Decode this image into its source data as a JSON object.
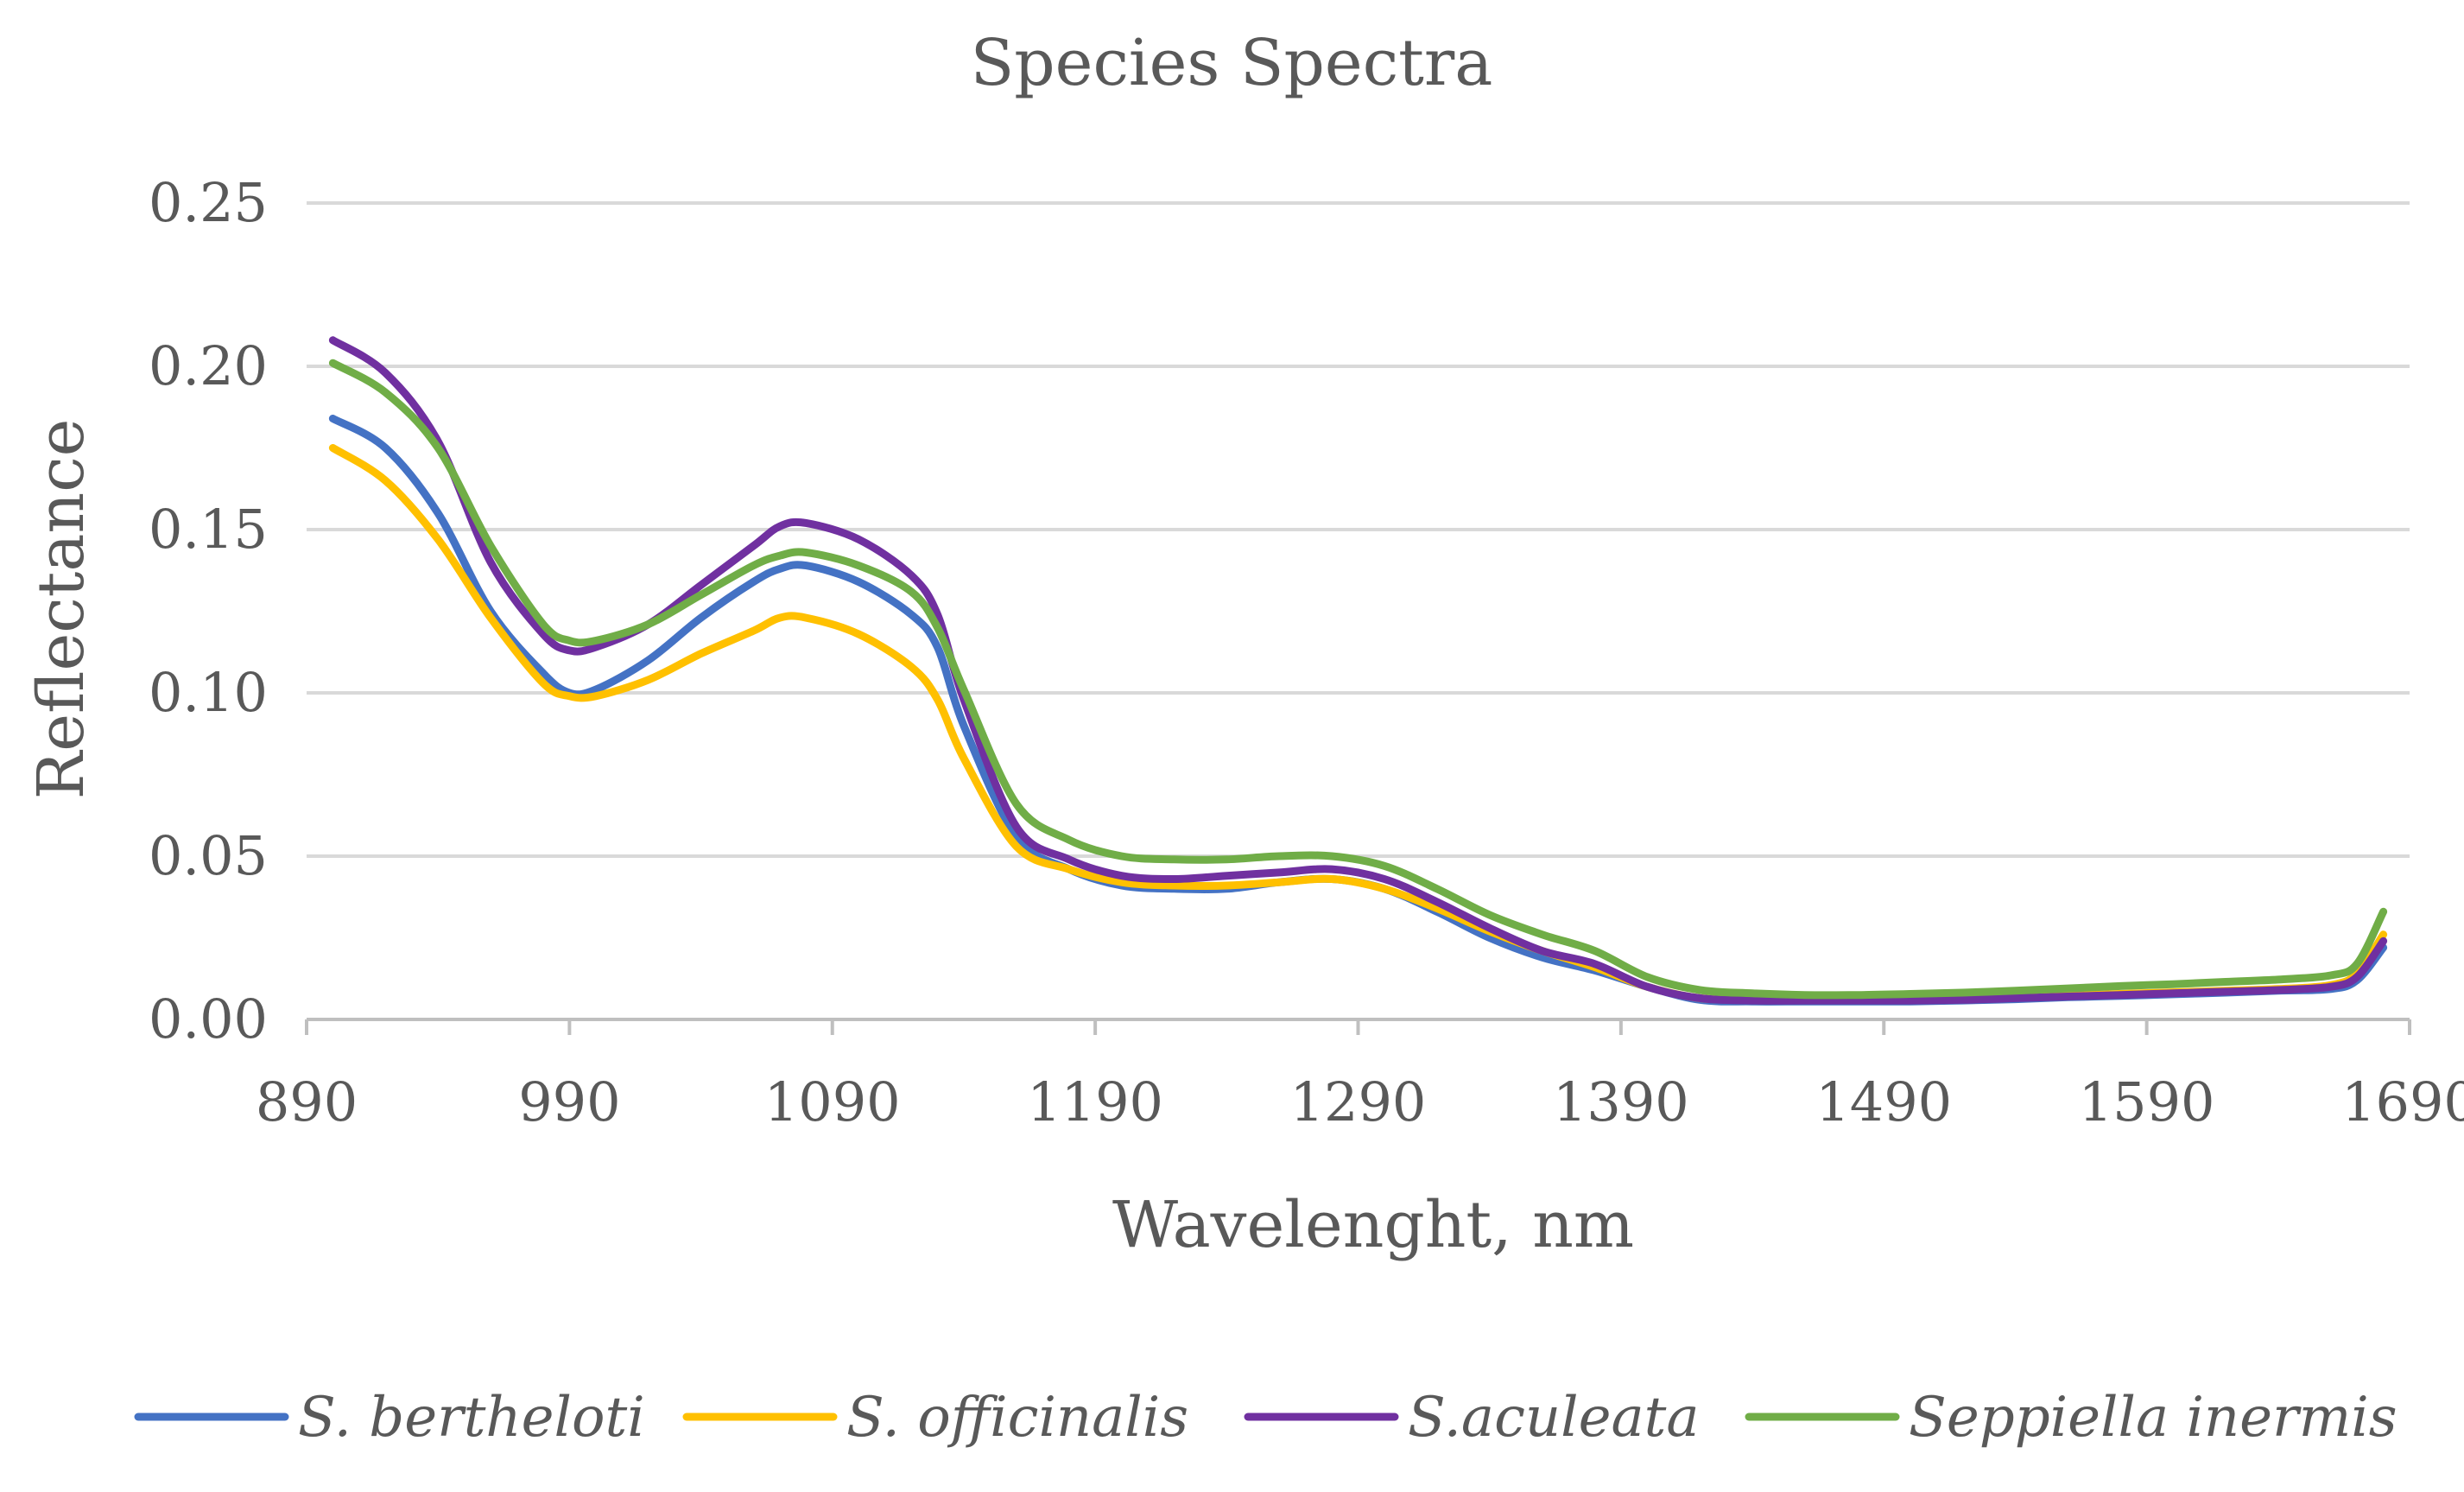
{
  "chart_data": {
    "type": "line",
    "title": "Species Spectra",
    "xlabel": "Wavelenght, nm",
    "ylabel": "Reflectance",
    "xlim": [
      890,
      1690
    ],
    "ylim": [
      0,
      0.25
    ],
    "x_ticks": [
      890,
      990,
      1090,
      1190,
      1290,
      1390,
      1490,
      1590,
      1690
    ],
    "x_tick_labels": [
      "890",
      "990",
      "1090",
      "1190",
      "1290",
      "1390",
      "1490",
      "1590",
      "1690"
    ],
    "y_ticks": [
      0,
      0.05,
      0.1,
      0.15,
      0.2,
      0.25
    ],
    "y_tick_labels": [
      "0.00",
      "0.05",
      "0.10",
      "0.15",
      "0.20",
      "0.25"
    ],
    "grid": "horizontal",
    "legend_position": "bottom",
    "x": [
      900,
      920,
      940,
      960,
      980,
      990,
      1000,
      1020,
      1040,
      1060,
      1070,
      1080,
      1100,
      1120,
      1130,
      1140,
      1160,
      1180,
      1200,
      1220,
      1240,
      1260,
      1280,
      1300,
      1320,
      1340,
      1360,
      1380,
      1400,
      1420,
      1440,
      1460,
      1480,
      1500,
      1520,
      1540,
      1560,
      1580,
      1600,
      1620,
      1640,
      1660,
      1670,
      1680
    ],
    "series": [
      {
        "name": "S. bertheloti",
        "color": "#4472C4",
        "values": [
          0.184,
          0.175,
          0.155,
          0.125,
          0.106,
          0.1,
          0.101,
          0.11,
          0.123,
          0.134,
          0.138,
          0.139,
          0.134,
          0.124,
          0.114,
          0.09,
          0.056,
          0.046,
          0.041,
          0.04,
          0.04,
          0.042,
          0.043,
          0.04,
          0.033,
          0.025,
          0.019,
          0.015,
          0.01,
          0.006,
          0.0055,
          0.0055,
          0.0055,
          0.0055,
          0.0058,
          0.0062,
          0.0068,
          0.0072,
          0.0077,
          0.0082,
          0.0088,
          0.0093,
          0.012,
          0.022
        ]
      },
      {
        "name": "S. officinalis",
        "color": "#FFC000",
        "values": [
          0.175,
          0.165,
          0.147,
          0.123,
          0.103,
          0.099,
          0.099,
          0.104,
          0.112,
          0.119,
          0.123,
          0.123,
          0.118,
          0.108,
          0.098,
          0.08,
          0.053,
          0.046,
          0.042,
          0.041,
          0.041,
          0.042,
          0.043,
          0.04,
          0.034,
          0.027,
          0.021,
          0.016,
          0.01,
          0.0065,
          0.006,
          0.006,
          0.006,
          0.006,
          0.0063,
          0.0068,
          0.0073,
          0.0078,
          0.0083,
          0.0088,
          0.0093,
          0.0105,
          0.014,
          0.026
        ]
      },
      {
        "name": "S.aculeata",
        "color": "#7030A0",
        "values": [
          0.208,
          0.198,
          0.177,
          0.14,
          0.118,
          0.113,
          0.114,
          0.121,
          0.133,
          0.145,
          0.151,
          0.152,
          0.147,
          0.136,
          0.124,
          0.098,
          0.059,
          0.049,
          0.044,
          0.043,
          0.044,
          0.045,
          0.046,
          0.043,
          0.036,
          0.028,
          0.021,
          0.017,
          0.01,
          0.0065,
          0.0058,
          0.0058,
          0.0058,
          0.0058,
          0.006,
          0.0065,
          0.007,
          0.0075,
          0.008,
          0.0085,
          0.009,
          0.01,
          0.013,
          0.024
        ]
      },
      {
        "name": "Seppiella inermis",
        "color": "#70AD47",
        "values": [
          0.201,
          0.192,
          0.175,
          0.145,
          0.121,
          0.116,
          0.116,
          0.121,
          0.13,
          0.139,
          0.142,
          0.143,
          0.139,
          0.131,
          0.12,
          0.101,
          0.066,
          0.055,
          0.05,
          0.049,
          0.049,
          0.05,
          0.05,
          0.047,
          0.04,
          0.032,
          0.026,
          0.021,
          0.013,
          0.009,
          0.008,
          0.0075,
          0.0075,
          0.0078,
          0.0082,
          0.0088,
          0.0095,
          0.0102,
          0.0108,
          0.0115,
          0.0122,
          0.0135,
          0.017,
          0.033
        ]
      }
    ]
  }
}
